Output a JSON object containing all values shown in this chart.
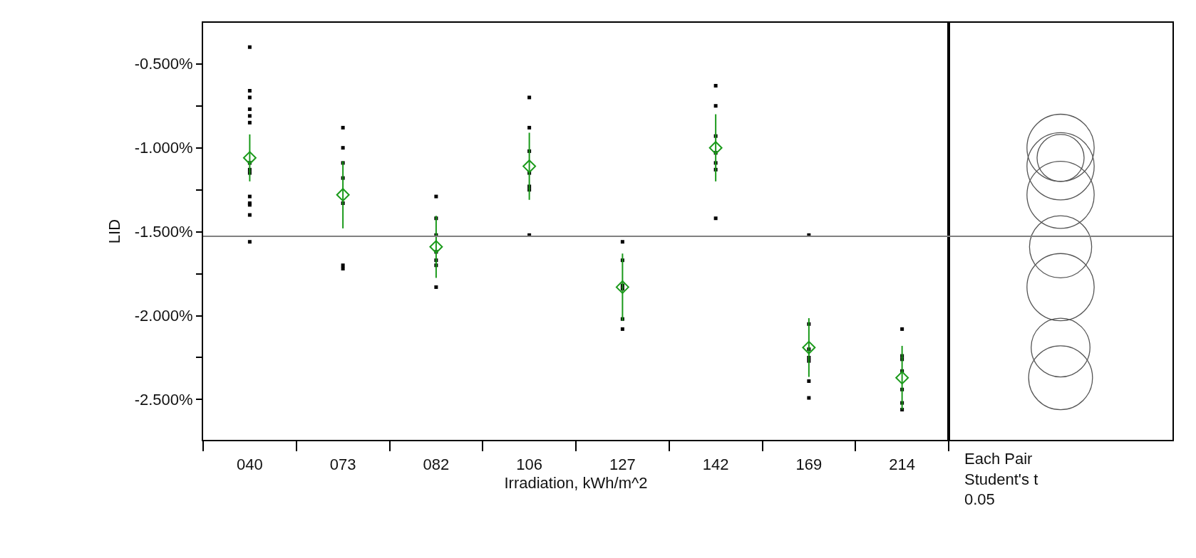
{
  "chart_data": {
    "type": "scatter",
    "xlabel": "Irradiation, kWh/m^2",
    "ylabel": "LID",
    "categories": [
      "040",
      "073",
      "082",
      "106",
      "127",
      "142",
      "169",
      "214"
    ],
    "series": [
      {
        "marker": "square",
        "color": "#000000",
        "x": [
          "040",
          "040",
          "040",
          "040",
          "040",
          "040",
          "040",
          "040",
          "040",
          "040",
          "040",
          "040",
          "040",
          "040",
          "073",
          "073",
          "073",
          "073",
          "073",
          "073",
          "073",
          "082",
          "082",
          "082",
          "082",
          "082",
          "082",
          "082",
          "106",
          "106",
          "106",
          "106",
          "106",
          "106",
          "106",
          "127",
          "127",
          "127",
          "127",
          "127",
          "127",
          "142",
          "142",
          "142",
          "142",
          "142",
          "142",
          "142",
          "169",
          "169",
          "169",
          "169",
          "169",
          "169",
          "169",
          "214",
          "214",
          "214",
          "214",
          "214",
          "214",
          "214"
        ],
        "values": [
          -0.4,
          -0.66,
          -0.7,
          -0.77,
          -0.81,
          -0.85,
          -1.09,
          -1.13,
          -1.15,
          -1.29,
          -1.33,
          -1.34,
          -1.4,
          -1.56,
          -0.88,
          -1.0,
          -1.09,
          -1.18,
          -1.33,
          -1.7,
          -1.72,
          -1.29,
          -1.42,
          -1.52,
          -1.62,
          -1.67,
          -1.7,
          -1.83,
          -0.7,
          -0.88,
          -1.02,
          -1.15,
          -1.23,
          -1.25,
          -1.52,
          -1.56,
          -1.67,
          -1.82,
          -1.84,
          -2.02,
          -2.08,
          -0.63,
          -0.75,
          -0.93,
          -1.03,
          -1.09,
          -1.13,
          -1.42,
          -1.52,
          -2.05,
          -2.2,
          -2.25,
          -2.27,
          -2.39,
          -2.49,
          -2.08,
          -2.24,
          -2.26,
          -2.33,
          -2.44,
          -2.52,
          -2.56
        ]
      },
      {
        "marker": "diamond",
        "color": "#1a9a1a",
        "values": [
          -1.06,
          -1.28,
          -1.59,
          -1.11,
          -1.83,
          -1.0,
          -2.19,
          -2.37
        ],
        "errors": [
          0.14,
          0.2,
          0.185,
          0.2,
          0.2,
          0.2,
          0.175,
          0.19
        ]
      }
    ],
    "ylim": [
      -2.74,
      -0.255
    ],
    "yticks": [
      {
        "value": -0.5,
        "label": "-0.500%"
      },
      {
        "value": -0.75,
        "label": null
      },
      {
        "value": -1.0,
        "label": "-1.000%"
      },
      {
        "value": -1.25,
        "label": null
      },
      {
        "value": -1.5,
        "label": "-1.500%"
      },
      {
        "value": -1.75,
        "label": null
      },
      {
        "value": -2.0,
        "label": "-2.000%"
      },
      {
        "value": -2.25,
        "label": null
      },
      {
        "value": -2.5,
        "label": "-2.500%"
      }
    ],
    "ref_lines": [
      {
        "axis": "y",
        "value": -1.527,
        "color": "#808080"
      }
    ],
    "annotations": [
      "Each Pair\nStudent's t\n0.05"
    ]
  }
}
